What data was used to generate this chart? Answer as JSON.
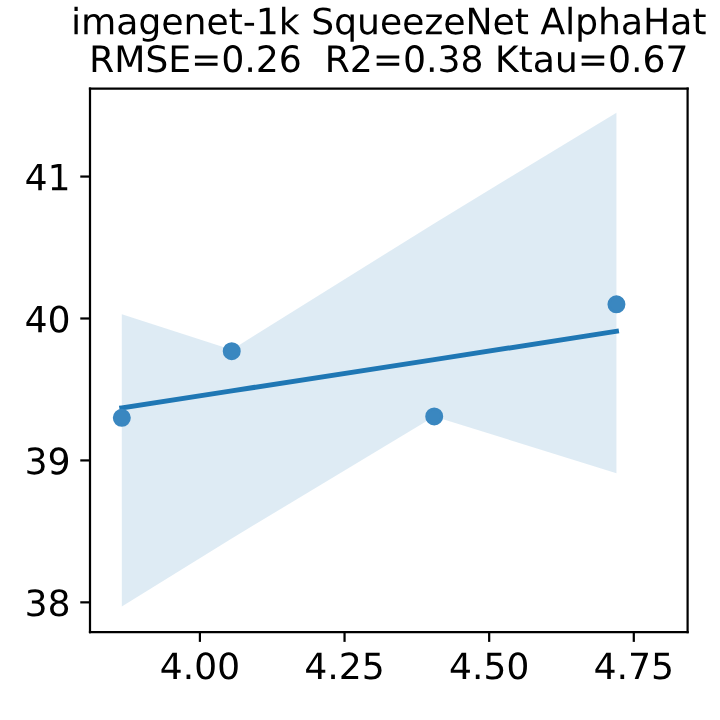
{
  "chart_data": {
    "type": "scatter",
    "title": "imagenet-1k SqueezeNet AlphaHat",
    "subtitle": "RMSE=0.26  R2=0.38 Ktau=0.67",
    "xlim": [
      3.81,
      4.843
    ],
    "ylim": [
      37.79,
      41.62
    ],
    "xticks": [
      {
        "value": 4.0,
        "label": "4.00"
      },
      {
        "value": 4.25,
        "label": "4.25"
      },
      {
        "value": 4.5,
        "label": "4.50"
      },
      {
        "value": 4.75,
        "label": "4.75"
      }
    ],
    "yticks": [
      38,
      39,
      40,
      41
    ],
    "grid": false,
    "series": [
      {
        "marker": "circle",
        "color": "#3a87c0",
        "x": [
          3.865,
          4.055,
          4.405,
          4.72
        ],
        "values": [
          39.3,
          39.77,
          39.31,
          40.1
        ]
      },
      {
        "type": "line",
        "marker": "none",
        "color": "#1f77b4",
        "x": [
          3.865,
          4.055,
          4.405,
          4.72
        ],
        "values": [
          39.37,
          39.49,
          39.71,
          39.91
        ],
        "lower": [
          37.97,
          38.45,
          39.31,
          38.91
        ],
        "upper": [
          40.03,
          39.78,
          40.67,
          41.45
        ]
      }
    ]
  }
}
